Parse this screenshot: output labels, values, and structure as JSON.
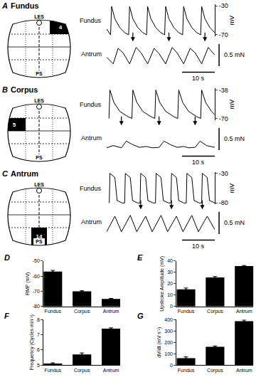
{
  "chart_data": [
    {
      "type": "line",
      "panel": "A",
      "title": "Fundus",
      "diagram": {
        "top_label": "LES",
        "bottom_label": "PS",
        "region_number": 4
      },
      "series": [
        {
          "name": "Fundus",
          "axis": "y",
          "color": "#000000",
          "x": [
            0,
            1.2,
            1.5,
            2.5,
            4,
            5.5,
            6.7,
            7,
            8,
            9.5,
            11,
            12.2,
            12.5,
            13.5,
            15,
            16.5,
            17.7,
            18,
            19,
            20.5,
            22,
            23.2,
            23.5,
            24.5,
            26,
            27.5,
            28.7,
            29,
            30,
            31.5,
            33
          ],
          "values": [
            -62,
            -70,
            -31,
            -48,
            -60,
            -67,
            -70,
            -31,
            -48,
            -60,
            -67,
            -70,
            -31,
            -48,
            -60,
            -67,
            -70,
            -31,
            -48,
            -60,
            -67,
            -70,
            -31,
            -48,
            -60,
            -67,
            -70,
            -31,
            -48,
            -60,
            -67
          ]
        },
        {
          "name": "Antrum",
          "axis": "y2",
          "color": "#000000",
          "x": [
            0,
            2,
            3.5,
            5,
            7,
            9,
            10.5,
            12.5,
            14.5,
            16,
            18,
            20,
            21.5,
            23.5,
            25.5,
            27,
            29,
            31,
            33
          ],
          "values": [
            0.2,
            0.05,
            0.4,
            0.3,
            0.05,
            0.42,
            0.3,
            0.05,
            0.4,
            0.28,
            0.05,
            0.42,
            0.3,
            0.05,
            0.4,
            0.3,
            0.05,
            0.42,
            0.25
          ]
        }
      ],
      "xlim": [
        0,
        33
      ],
      "ylim": [
        -72,
        -28
      ],
      "yticks": [
        -30,
        -70
      ],
      "ylabel": "mV",
      "y2lim": [
        -0.05,
        0.6
      ],
      "scale_bars": [
        {
          "axis": "y2",
          "value": 0.5,
          "label": "0.5 mN"
        },
        {
          "axis": "x",
          "value": 10,
          "label": "10 s"
        }
      ],
      "arrows_x": [
        8,
        19,
        30
      ],
      "tick_labels": "y"
    },
    {
      "type": "line",
      "panel": "B",
      "title": "Corpus",
      "diagram": {
        "top_label": "LES",
        "bottom_label": "PS",
        "region_number": 5
      },
      "series": [
        {
          "name": "Fundus",
          "axis": "y",
          "color": "#000000",
          "x": [
            0.7,
            1,
            2.2,
            4,
            6.5,
            7.7,
            8,
            9.2,
            11,
            13.5,
            14.7,
            15,
            16.2,
            18,
            20.5,
            21.7,
            22,
            23.2,
            25,
            27.5,
            28.7,
            29,
            30.2,
            32,
            33
          ],
          "values": [
            -70,
            -38,
            -52,
            -62,
            -68,
            -70,
            -38,
            -52,
            -62,
            -68,
            -70,
            -38,
            -52,
            -62,
            -68,
            -70,
            -38,
            -52,
            -62,
            -68,
            -70,
            -38,
            -52,
            -62,
            -66
          ]
        },
        {
          "name": "Antrum",
          "axis": "y2",
          "color": "#000000",
          "x": [
            0,
            2,
            4.5,
            6,
            8,
            10,
            12,
            14,
            16,
            17.5,
            19.5,
            21.5,
            23.5,
            25,
            27,
            28.5,
            30.5,
            33
          ],
          "values": [
            0.05,
            0.1,
            0.05,
            0.2,
            0.12,
            0.06,
            0.08,
            0.05,
            0.06,
            0.2,
            0.12,
            0.06,
            0.08,
            0.05,
            0.06,
            0.2,
            0.1,
            0.06
          ]
        }
      ],
      "xlim": [
        0,
        33
      ],
      "ylim": [
        -72,
        -36
      ],
      "yticks": [
        -38,
        -70
      ],
      "ylabel": "mV",
      "y2lim": [
        -0.05,
        0.6
      ],
      "scale_bars": [
        {
          "axis": "y2",
          "value": 0.5,
          "label": "0.5 mN"
        },
        {
          "axis": "x",
          "value": 10,
          "label": "10 s"
        }
      ],
      "arrows_x": [
        4.5,
        16,
        27
      ],
      "tick_labels": "y"
    },
    {
      "type": "line",
      "panel": "C",
      "title": "Antrum",
      "diagram": {
        "top_label": "LES",
        "bottom_label": "PS",
        "region_number": 14
      },
      "series": [
        {
          "name": "Fundus",
          "axis": "y",
          "color": "#000000",
          "x": [
            0.8,
            1,
            2.5,
            3.2,
            4.8,
            5.5,
            5.7,
            7.2,
            7.9,
            9.5,
            10.2,
            10.4,
            11.9,
            12.6,
            14.2,
            14.9,
            15.1,
            16.6,
            17.3,
            18.9,
            19.6,
            19.8,
            21.3,
            22,
            23.6,
            24.3,
            24.5,
            26,
            26.7,
            28.3,
            29,
            29.2,
            30.7,
            31.4,
            33
          ],
          "values": [
            -80,
            -30,
            -37,
            -76,
            -80,
            -80,
            -30,
            -37,
            -76,
            -80,
            -80,
            -30,
            -37,
            -76,
            -80,
            -80,
            -30,
            -37,
            -76,
            -80,
            -80,
            -30,
            -37,
            -76,
            -80,
            -80,
            -30,
            -37,
            -76,
            -80,
            -80,
            -30,
            -37,
            -76,
            -80
          ]
        },
        {
          "name": "Antrum",
          "axis": "y2",
          "color": "#000000",
          "x": [
            0,
            2.5,
            4.5,
            7.2,
            9.2,
            11.9,
            13.9,
            16.6,
            18.6,
            21.3,
            23.3,
            26,
            28,
            30.7,
            33
          ],
          "values": [
            0.05,
            0.4,
            0.05,
            0.42,
            0.05,
            0.4,
            0.05,
            0.42,
            0.05,
            0.4,
            0.05,
            0.42,
            0.05,
            0.4,
            0.1
          ]
        }
      ],
      "xlim": [
        0,
        33
      ],
      "ylim": [
        -82,
        -28
      ],
      "yticks": [
        -30,
        -80
      ],
      "ylabel": "mV",
      "y2lim": [
        -0.05,
        0.6
      ],
      "scale_bars": [
        {
          "axis": "y2",
          "value": 0.5,
          "label": "0.5 mN"
        },
        {
          "axis": "x",
          "value": 10,
          "label": "10 s"
        }
      ],
      "arrows_x": [
        10.4,
        19.8,
        29.2
      ],
      "tick_labels": "y"
    },
    {
      "type": "bar",
      "panel": "D",
      "categories": [
        "Fundus",
        "Corpus",
        "Antrum"
      ],
      "values": [
        -57,
        -70,
        -75
      ],
      "errors": [
        0.8,
        0.4,
        0.3
      ],
      "color": "#000000",
      "ylabel": "RMP (mV)",
      "ylim": [
        -80,
        -50
      ],
      "yticks": [
        -80,
        -70,
        -60,
        -50
      ]
    },
    {
      "type": "bar",
      "panel": "E",
      "categories": [
        "Fundus",
        "Corpus",
        "Antrum"
      ],
      "values": [
        15,
        25.5,
        35.5
      ],
      "errors": [
        1.2,
        0.8,
        0.5
      ],
      "color": "#000000",
      "ylabel": "Upstroke Amplitude (mV)",
      "ylim": [
        0,
        40
      ],
      "yticks": [
        0,
        10,
        20,
        30,
        40
      ]
    },
    {
      "type": "bar",
      "panel": "F",
      "categories": [
        "Fundus",
        "Corpus",
        "Antrum"
      ],
      "values": [
        5.1,
        5.7,
        7.4
      ],
      "errors": [
        0.05,
        0.1,
        0.05
      ],
      "color": "#000000",
      "ylabel": "Frequency (Cycles min⁻¹)",
      "ylim": [
        5,
        8
      ],
      "yticks": [
        5,
        6,
        7,
        8
      ]
    },
    {
      "type": "bar",
      "panel": "G",
      "categories": [
        "Fundus",
        "Corpus",
        "Antrum"
      ],
      "values": [
        60,
        160,
        385
      ],
      "errors": [
        12,
        8,
        10
      ],
      "color": "#000000",
      "ylabel": "dV/dt (mV s⁻¹)",
      "ylim": [
        0,
        400
      ],
      "yticks": [
        0,
        100,
        200,
        300,
        400
      ]
    }
  ]
}
